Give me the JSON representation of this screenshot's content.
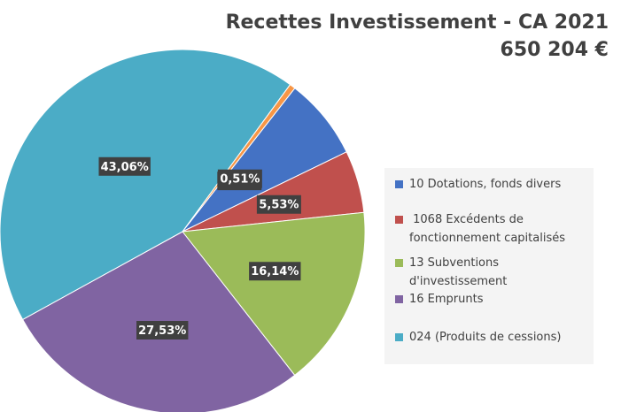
{
  "chart_data": {
    "type": "pie",
    "title": "Recettes Investissement - CA 2021",
    "subtitle": "650 204 €",
    "slices": [
      {
        "label": "10 Dotations, fonds divers",
        "value": 7.23,
        "value_label": "7,23%",
        "color": "#4472c4"
      },
      {
        "label": "1068 Excédents de fonctionnement capitalisés",
        "value": 5.53,
        "value_label": "5,53%",
        "color": "#c0504d"
      },
      {
        "label": "13 Subventions d'investissement",
        "value": 16.14,
        "value_label": "16,14%",
        "color": "#9bbb59"
      },
      {
        "label": "16 Emprunts",
        "value": 27.53,
        "value_label": "27,53%",
        "color": "#8064a2"
      },
      {
        "label": "024 (Produits de cessions)",
        "value": 43.06,
        "value_label": "43,06%",
        "color": "#4bacc6"
      },
      {
        "label": "",
        "value": 0.51,
        "value_label": "0,51%",
        "color": "#f79646"
      }
    ],
    "legend": [
      {
        "lines": [
          "10 Dotations, fonds divers"
        ],
        "color": "#4472c4"
      },
      {
        "lines": [
          " 1068 Excédents de",
          "fonctionnement capitalisés"
        ],
        "color": "#c0504d"
      },
      {
        "lines": [
          "13 Subventions",
          "d'investissement"
        ],
        "color": "#9bbb59"
      },
      {
        "lines": [
          "16 Emprunts"
        ],
        "color": "#8064a2"
      },
      {
        "lines": [
          "024 (Produits de cessions)"
        ],
        "color": "#4bacc6"
      }
    ],
    "legend_position": "right"
  }
}
